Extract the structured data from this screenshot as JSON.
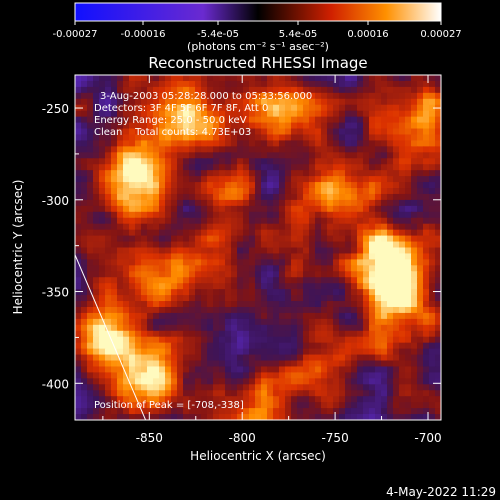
{
  "colorbar": {
    "ticks": [
      "-0.00027",
      "-0.00016",
      "-5.4e-05",
      "5.4e-05",
      "0.00016",
      "0.00027"
    ],
    "unit_label": "(photons cm⁻² s⁻¹ asec⁻²)",
    "range": [
      -0.00027,
      0.00027
    ]
  },
  "chart_data": {
    "type": "heatmap",
    "title": "Reconstructed RHESSI Image",
    "xlabel": "Heliocentric X (arcsec)",
    "ylabel": "Heliocentric Y (arcsec)",
    "xlim": [
      -890,
      -693
    ],
    "ylim": [
      -420,
      -232
    ],
    "x_ticks": [
      -850,
      -800,
      -750,
      -700
    ],
    "y_ticks": [
      -250,
      -300,
      -350,
      -400
    ],
    "colormap": "rhessi-blue-purple-red-yellow",
    "annotations": [
      "3-Aug-2003 05:28:28.000 to 05:33:56.000",
      "Detectors: 3F 4F 5F 6F 7F 8F, Att 0",
      "Energy Range: 25.0 - 50.0 keV",
      "Clean    Total counts: 4.73E+03"
    ],
    "peak_label": "Position of Peak = [-708,-338]",
    "peak": [
      -708,
      -338
    ],
    "limb_line": [
      [
        -890,
        -330
      ],
      [
        -852,
        -420
      ]
    ],
    "hotspots": [
      {
        "x": -858,
        "y": -290,
        "w": 0.9
      },
      {
        "x": -830,
        "y": -258,
        "w": 0.6
      },
      {
        "x": -720,
        "y": -337,
        "w": 1.0
      },
      {
        "x": -715,
        "y": -363,
        "w": 0.5
      },
      {
        "x": -875,
        "y": -375,
        "w": 0.75
      },
      {
        "x": -852,
        "y": -398,
        "w": 0.6
      },
      {
        "x": -790,
        "y": -410,
        "w": 0.5
      },
      {
        "x": -745,
        "y": -300,
        "w": 0.55
      },
      {
        "x": -778,
        "y": -250,
        "w": 0.45
      },
      {
        "x": -808,
        "y": -305,
        "w": 0.4
      },
      {
        "x": -755,
        "y": -385,
        "w": 0.4
      },
      {
        "x": -708,
        "y": -255,
        "w": 0.5
      },
      {
        "x": -845,
        "y": -340,
        "w": 0.45
      }
    ]
  },
  "footer": {
    "timestamp": "4-May-2022 11:29"
  }
}
